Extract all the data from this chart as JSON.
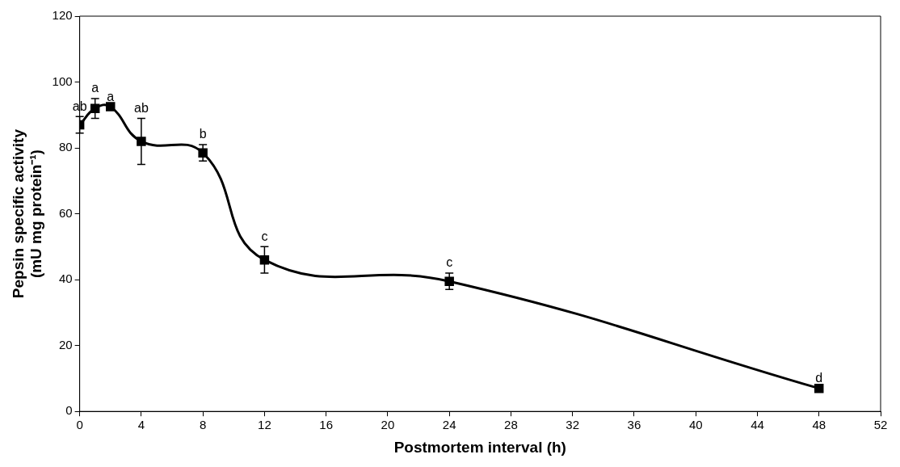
{
  "chart_data": {
    "type": "line",
    "xlabel": "Postmortem interval (h)",
    "ylabel": "Pepsin specific activity\n(mU mg protein⁻¹)",
    "x": [
      0,
      1,
      2,
      4,
      8,
      12,
      24,
      48
    ],
    "series": [
      {
        "color": "#000000",
        "values": [
          87,
          92,
          92.5,
          82,
          78.5,
          46,
          39.5,
          7
        ],
        "errors": [
          2.5,
          3,
          null,
          7,
          2.5,
          4,
          2.5,
          null
        ]
      }
    ],
    "annotations": [
      {
        "text": "ab",
        "x": 0,
        "y": 87
      },
      {
        "text": "a",
        "x": 1,
        "y": 92
      },
      {
        "text": "a",
        "x": 2,
        "y": 92.5
      },
      {
        "text": "ab",
        "x": 4,
        "y": 82
      },
      {
        "text": "b",
        "x": 8,
        "y": 78.5
      },
      {
        "text": "c",
        "x": 12,
        "y": 46
      },
      {
        "text": "c",
        "x": 24,
        "y": 39.5
      },
      {
        "text": "d",
        "x": 48,
        "y": 7
      }
    ],
    "xlim": [
      0,
      52
    ],
    "xticks": [
      0,
      4,
      8,
      12,
      16,
      20,
      24,
      28,
      32,
      36,
      40,
      44,
      48,
      52
    ],
    "ylim": [
      0,
      120
    ],
    "yticks": [
      0,
      20,
      40,
      60,
      80,
      100,
      120
    ],
    "grid": false,
    "legend": false,
    "marker": "square",
    "line_style": "solid"
  }
}
